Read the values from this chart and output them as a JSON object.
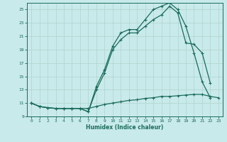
{
  "bg_color": "#c8eaea",
  "grid_color": "#b0d4cc",
  "line_color": "#1a6b5a",
  "xlabel": "Humidex (Indice chaleur)",
  "xlim": [
    -0.5,
    23.5
  ],
  "ylim": [
    9,
    26
  ],
  "yticks": [
    9,
    11,
    13,
    15,
    17,
    19,
    21,
    23,
    25
  ],
  "xticks": [
    0,
    1,
    2,
    3,
    4,
    5,
    6,
    7,
    8,
    9,
    10,
    11,
    12,
    13,
    14,
    15,
    16,
    17,
    18,
    19,
    20,
    21,
    22,
    23
  ],
  "line1_x": [
    0,
    1,
    2,
    3,
    4,
    5,
    6,
    7,
    8,
    9,
    10,
    11,
    12,
    13,
    14,
    15,
    16,
    17,
    18,
    19,
    20,
    21,
    22,
    23
  ],
  "line1_y": [
    11,
    10.5,
    10.3,
    10.2,
    10.2,
    10.2,
    10.2,
    10.2,
    10.5,
    10.8,
    11.0,
    11.2,
    11.4,
    11.5,
    11.7,
    11.8,
    12.0,
    12.0,
    12.1,
    12.2,
    12.3,
    12.3,
    12.0,
    11.8
  ],
  "line2_x": [
    0,
    1,
    2,
    3,
    4,
    5,
    6,
    7,
    8,
    9,
    10,
    11,
    12,
    13,
    14,
    15,
    16,
    17,
    18,
    19,
    20,
    21,
    22
  ],
  "line2_y": [
    11,
    10.5,
    10.3,
    10.2,
    10.2,
    10.2,
    10.2,
    9.7,
    13.5,
    16.0,
    19.5,
    21.5,
    22.0,
    22.0,
    23.5,
    25.0,
    25.5,
    26.0,
    25.0,
    22.5,
    18.5,
    14.2,
    11.8
  ],
  "line3_x": [
    0,
    1,
    2,
    3,
    4,
    5,
    6,
    7,
    8,
    9,
    10,
    11,
    12,
    13,
    14,
    15,
    16,
    17,
    18,
    19,
    20,
    21,
    22
  ],
  "line3_y": [
    11,
    10.5,
    10.3,
    10.2,
    10.2,
    10.2,
    10.2,
    9.7,
    13.0,
    15.5,
    19.0,
    20.5,
    21.5,
    21.5,
    22.5,
    23.5,
    24.2,
    25.5,
    24.5,
    20.0,
    19.8,
    18.5,
    14.0
  ]
}
